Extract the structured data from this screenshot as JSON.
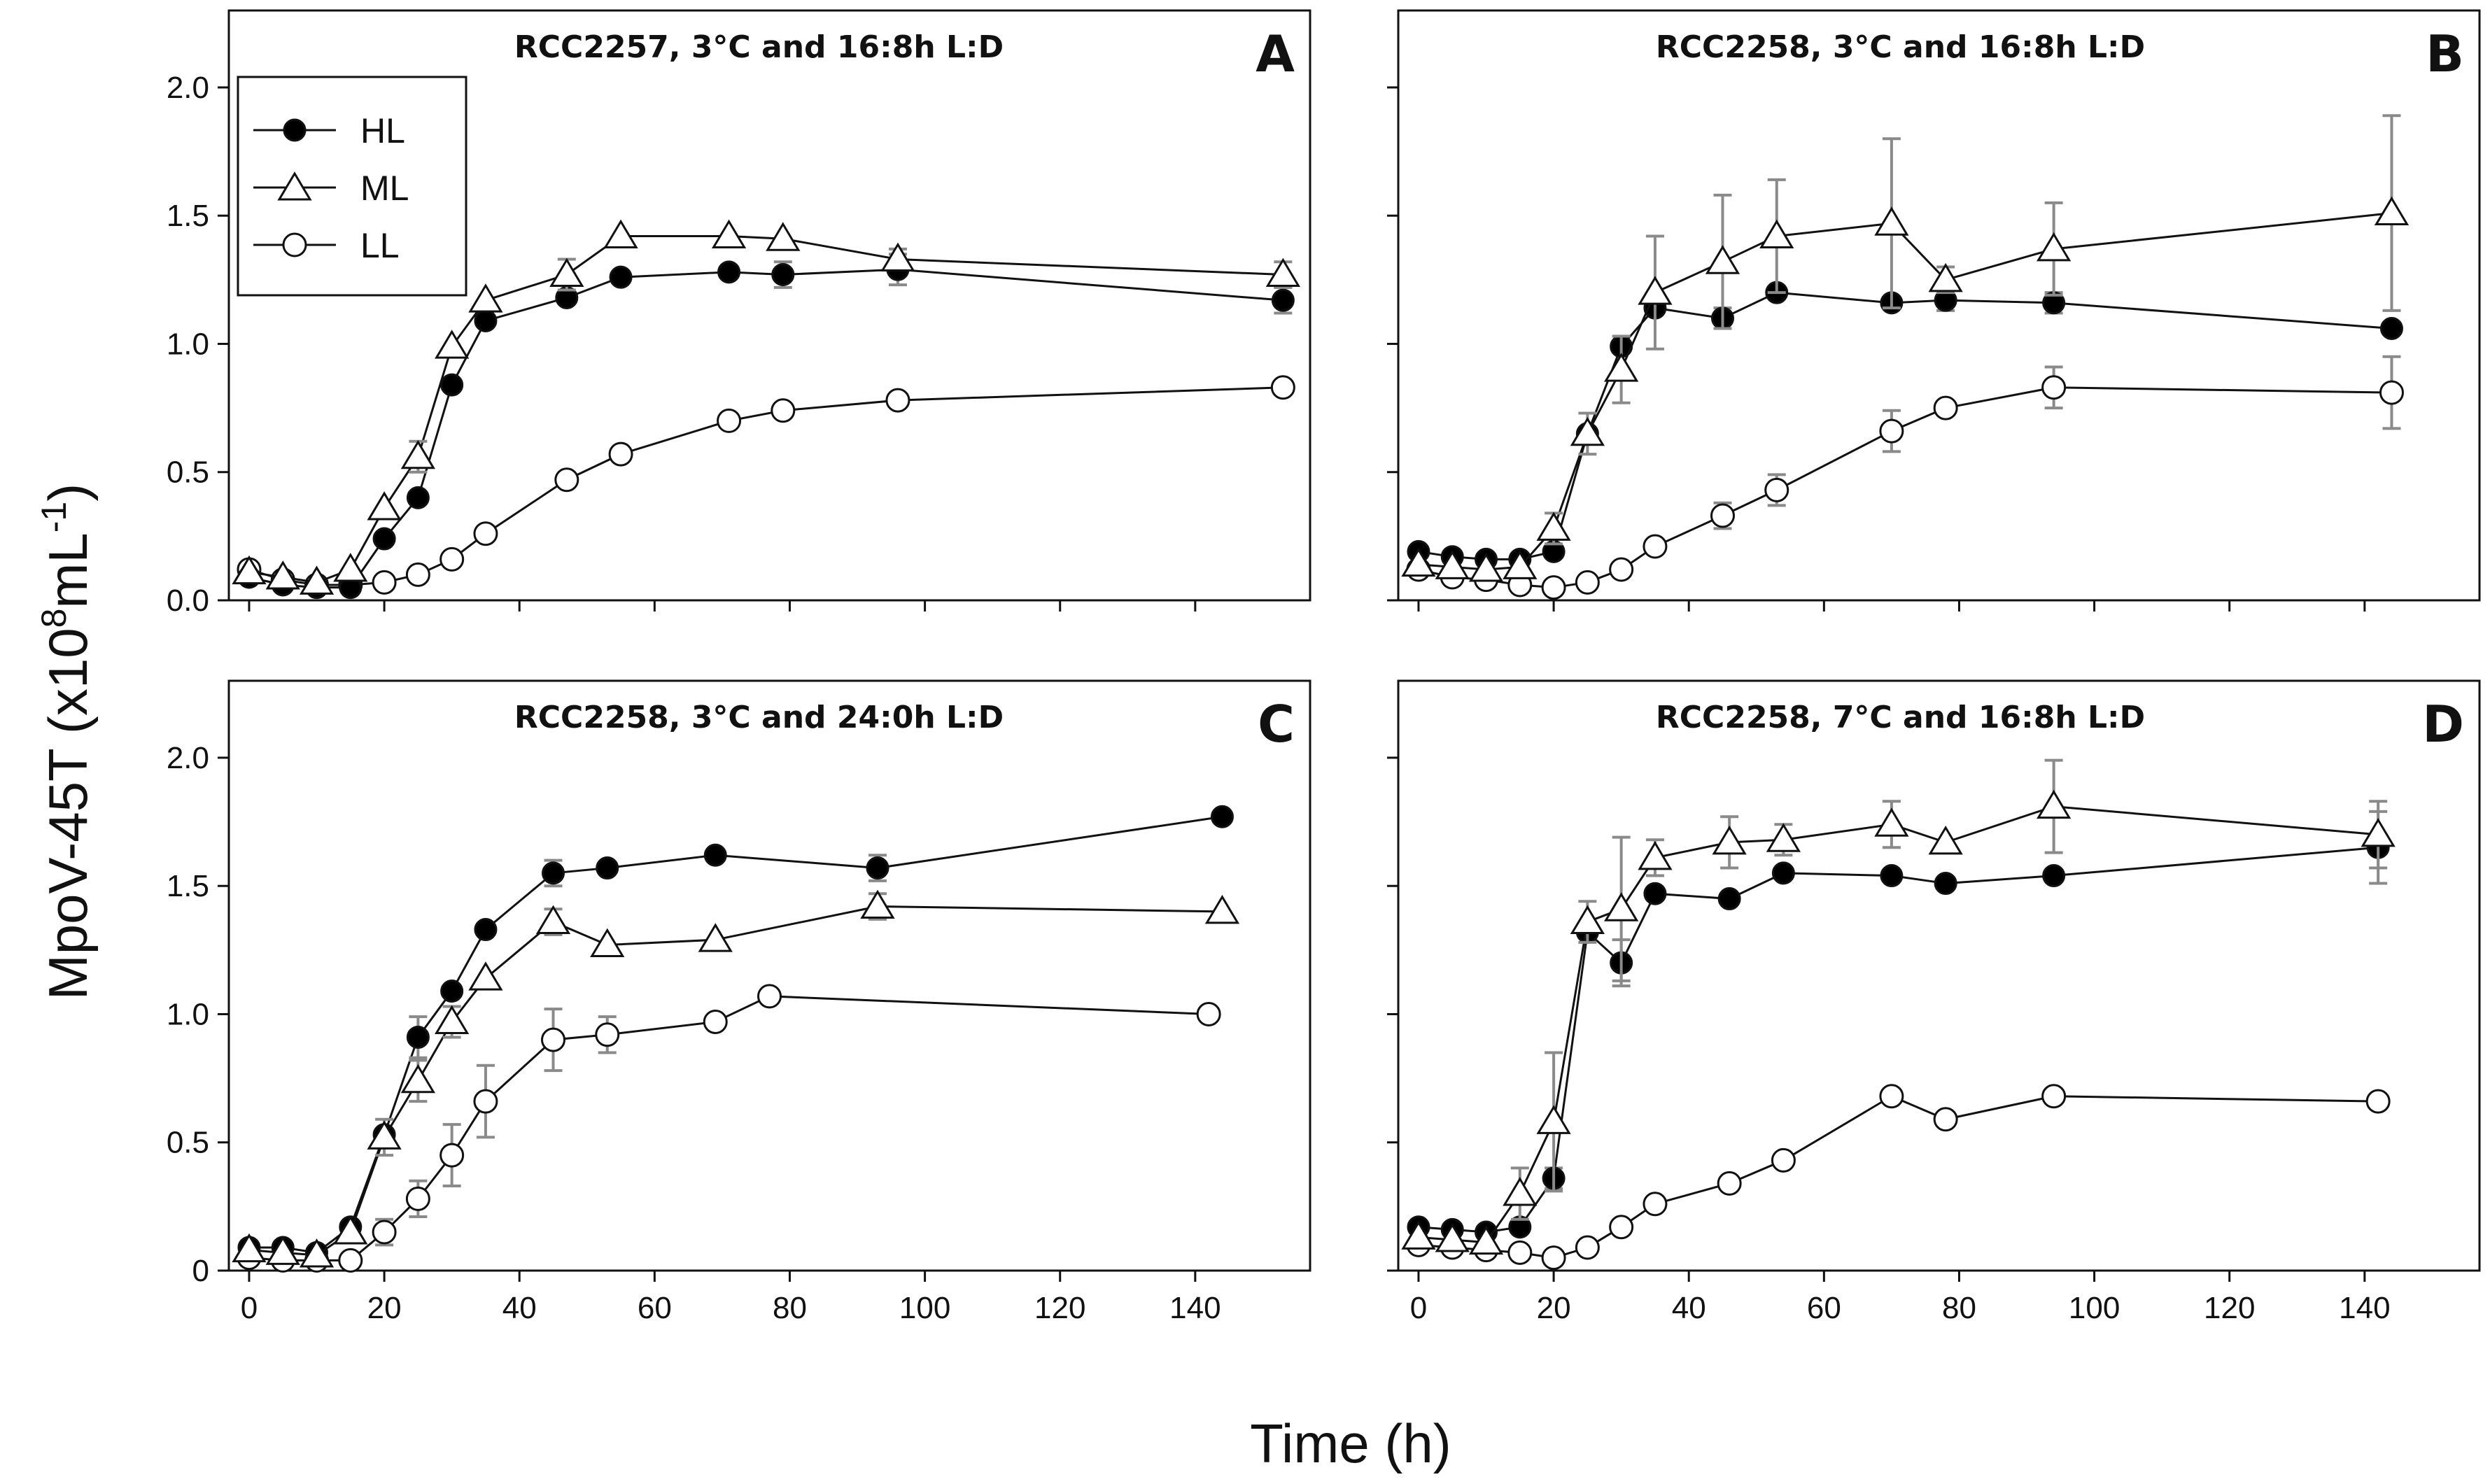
{
  "figure": {
    "ylabel_main": "MpoV-45T (x10",
    "ylabel_sup1": "8",
    "ylabel_mid": "mL",
    "ylabel_sup2": "-1",
    "ylabel_end": ")",
    "xlabel": "Time (h)"
  },
  "legend": {
    "items": [
      {
        "label": "HL",
        "marker": "filled-circle"
      },
      {
        "label": "ML",
        "marker": "open-triangle"
      },
      {
        "label": "LL",
        "marker": "open-circle"
      }
    ]
  },
  "colors": {
    "line": "#111111",
    "errorbar": "#8a8a8a",
    "fill_open": "#ffffff",
    "fill_filled": "#000000"
  },
  "chart_data": [
    {
      "type": "line",
      "letter": "A",
      "title": "RCC2257, 3°C and 16:8h L:D",
      "xlim": [
        -3,
        157
      ],
      "ylim": [
        0,
        2.3
      ],
      "xticks": [
        0,
        20,
        40,
        60,
        80,
        100,
        120,
        140
      ],
      "yticks": [
        0.0,
        0.5,
        1.0,
        1.5,
        2.0
      ],
      "ytick_labels": [
        "0.0",
        "0.5",
        "1.0",
        "1.5",
        "2.0"
      ],
      "series": [
        {
          "name": "HL",
          "x": [
            0,
            5,
            10,
            15,
            20,
            25,
            30,
            35,
            47,
            55,
            71,
            79,
            96,
            153
          ],
          "y": [
            0.09,
            0.06,
            0.05,
            0.05,
            0.24,
            0.4,
            0.84,
            1.09,
            1.18,
            1.26,
            1.28,
            1.27,
            1.29,
            1.17
          ],
          "err": [
            0,
            0,
            0,
            0,
            0,
            0,
            0,
            0,
            0.02,
            0,
            0,
            0.05,
            0.06,
            0.05
          ]
        },
        {
          "name": "ML",
          "x": [
            0,
            5,
            10,
            15,
            20,
            25,
            30,
            35,
            47,
            55,
            71,
            79,
            96,
            153
          ],
          "y": [
            0.11,
            0.09,
            0.07,
            0.12,
            0.36,
            0.56,
            0.99,
            1.17,
            1.27,
            1.42,
            1.42,
            1.41,
            1.33,
            1.27
          ],
          "err": [
            0,
            0,
            0,
            0,
            0,
            0.06,
            0,
            0,
            0.06,
            0,
            0,
            0,
            0.04,
            0.05
          ]
        },
        {
          "name": "LL",
          "x": [
            0,
            5,
            10,
            15,
            20,
            25,
            30,
            35,
            47,
            55,
            71,
            79,
            96,
            153
          ],
          "y": [
            0.12,
            0.08,
            0.06,
            0.06,
            0.07,
            0.1,
            0.16,
            0.26,
            0.47,
            0.57,
            0.7,
            0.74,
            0.78,
            0.83
          ],
          "err": [
            0,
            0,
            0,
            0,
            0,
            0,
            0,
            0,
            0,
            0,
            0,
            0,
            0,
            0
          ]
        }
      ]
    },
    {
      "type": "line",
      "letter": "B",
      "title": "RCC2258, 3°C and 16:8h L:D",
      "xlim": [
        -3,
        157
      ],
      "ylim": [
        0,
        2.3
      ],
      "xticks": [
        0,
        20,
        40,
        60,
        80,
        100,
        120,
        140
      ],
      "yticks": [
        0.0,
        0.5,
        1.0,
        1.5,
        2.0
      ],
      "ytick_labels": [
        "0.0",
        "0.5",
        "1.0",
        "1.5",
        "2.0"
      ],
      "series": [
        {
          "name": "HL",
          "x": [
            0,
            5,
            10,
            15,
            20,
            25,
            30,
            35,
            45,
            53,
            70,
            78,
            94,
            144
          ],
          "y": [
            0.19,
            0.17,
            0.16,
            0.16,
            0.19,
            0.65,
            0.99,
            1.14,
            1.1,
            1.2,
            1.16,
            1.17,
            1.16,
            1.06
          ],
          "err": [
            0,
            0,
            0,
            0,
            0,
            0,
            0,
            0,
            0.04,
            0,
            0,
            0.04,
            0.04,
            0
          ]
        },
        {
          "name": "ML",
          "x": [
            0,
            5,
            10,
            15,
            20,
            25,
            30,
            35,
            45,
            53,
            70,
            78,
            94,
            144
          ],
          "y": [
            0.14,
            0.13,
            0.12,
            0.13,
            0.28,
            0.65,
            0.9,
            1.2,
            1.32,
            1.42,
            1.47,
            1.25,
            1.37,
            1.51
          ],
          "err": [
            0,
            0,
            0,
            0,
            0.06,
            0.08,
            0.13,
            0.22,
            0.26,
            0.22,
            0.33,
            0.05,
            0.18,
            0.38
          ]
        },
        {
          "name": "LL",
          "x": [
            0,
            5,
            10,
            15,
            20,
            25,
            30,
            35,
            45,
            53,
            70,
            78,
            94,
            144
          ],
          "y": [
            0.12,
            0.09,
            0.08,
            0.06,
            0.05,
            0.07,
            0.12,
            0.21,
            0.33,
            0.43,
            0.66,
            0.75,
            0.83,
            0.81
          ],
          "err": [
            0,
            0,
            0,
            0,
            0,
            0,
            0,
            0,
            0.05,
            0.06,
            0.08,
            0,
            0.08,
            0.14
          ]
        }
      ]
    },
    {
      "type": "line",
      "letter": "C",
      "title": "RCC2258, 3°C and 24:0h L:D",
      "xlim": [
        -3,
        157
      ],
      "ylim": [
        0,
        2.3
      ],
      "xticks": [
        0,
        20,
        40,
        60,
        80,
        100,
        120,
        140
      ],
      "yticks": [
        0,
        0.5,
        1.0,
        1.5,
        2.0
      ],
      "ytick_labels": [
        "0",
        "0.5",
        "1.0",
        "1.5",
        "2.0"
      ],
      "series": [
        {
          "name": "HL",
          "x": [
            0,
            5,
            10,
            15,
            20,
            25,
            30,
            35,
            45,
            53,
            69,
            93,
            144
          ],
          "y": [
            0.09,
            0.09,
            0.07,
            0.17,
            0.53,
            0.91,
            1.09,
            1.33,
            1.55,
            1.57,
            1.62,
            1.57,
            1.77
          ],
          "err": [
            0,
            0,
            0,
            0,
            0,
            0.08,
            0,
            0,
            0.05,
            0,
            0,
            0.05,
            0
          ]
        },
        {
          "name": "ML",
          "x": [
            0,
            5,
            10,
            15,
            20,
            25,
            30,
            35,
            45,
            53,
            69,
            93,
            144
          ],
          "y": [
            0.08,
            0.07,
            0.06,
            0.15,
            0.52,
            0.74,
            0.97,
            1.14,
            1.36,
            1.27,
            1.29,
            1.42,
            1.4
          ],
          "err": [
            0,
            0,
            0,
            0,
            0.07,
            0.08,
            0.06,
            0,
            0.05,
            0,
            0,
            0.05,
            0
          ]
        },
        {
          "name": "LL",
          "x": [
            0,
            5,
            10,
            15,
            20,
            25,
            30,
            35,
            45,
            53,
            69,
            77,
            142
          ],
          "y": [
            0.05,
            0.04,
            0.04,
            0.04,
            0.15,
            0.28,
            0.45,
            0.66,
            0.9,
            0.92,
            0.97,
            1.07,
            1.0
          ],
          "err": [
            0,
            0,
            0,
            0,
            0.05,
            0.07,
            0.12,
            0.14,
            0.12,
            0.07,
            0,
            0,
            0
          ]
        }
      ]
    },
    {
      "type": "line",
      "letter": "D",
      "title": "RCC2258, 7°C and 16:8h L:D",
      "xlim": [
        -3,
        157
      ],
      "ylim": [
        0,
        2.3
      ],
      "xticks": [
        0,
        20,
        40,
        60,
        80,
        100,
        120,
        140
      ],
      "yticks": [
        0.0,
        0.5,
        1.0,
        1.5,
        2.0
      ],
      "ytick_labels": [
        "0.0",
        "0.5",
        "1.0",
        "1.5",
        "2.0"
      ],
      "series": [
        {
          "name": "HL",
          "x": [
            0,
            5,
            10,
            15,
            20,
            25,
            30,
            35,
            46,
            54,
            70,
            78,
            94,
            142
          ],
          "y": [
            0.17,
            0.16,
            0.15,
            0.17,
            0.36,
            1.32,
            1.2,
            1.47,
            1.45,
            1.55,
            1.54,
            1.51,
            1.54,
            1.65
          ],
          "err": [
            0,
            0,
            0,
            0,
            0.04,
            0,
            0.09,
            0,
            0,
            0,
            0,
            0,
            0,
            0.14
          ]
        },
        {
          "name": "ML",
          "x": [
            0,
            5,
            10,
            15,
            20,
            25,
            30,
            35,
            46,
            54,
            70,
            78,
            94,
            142
          ],
          "y": [
            0.13,
            0.12,
            0.11,
            0.3,
            0.58,
            1.36,
            1.41,
            1.61,
            1.67,
            1.68,
            1.74,
            1.67,
            1.81,
            1.7
          ],
          "err": [
            0,
            0,
            0,
            0.1,
            0.27,
            0.08,
            0.28,
            0.07,
            0.1,
            0.06,
            0.09,
            0,
            0.18,
            0.13
          ]
        },
        {
          "name": "LL",
          "x": [
            0,
            5,
            10,
            15,
            20,
            25,
            30,
            35,
            46,
            54,
            70,
            78,
            94,
            142
          ],
          "y": [
            0.1,
            0.09,
            0.08,
            0.07,
            0.05,
            0.09,
            0.17,
            0.26,
            0.34,
            0.43,
            0.68,
            0.59,
            0.68,
            0.66
          ],
          "err": [
            0,
            0,
            0,
            0,
            0,
            0,
            0,
            0,
            0,
            0,
            0,
            0,
            0,
            0
          ]
        }
      ]
    }
  ]
}
